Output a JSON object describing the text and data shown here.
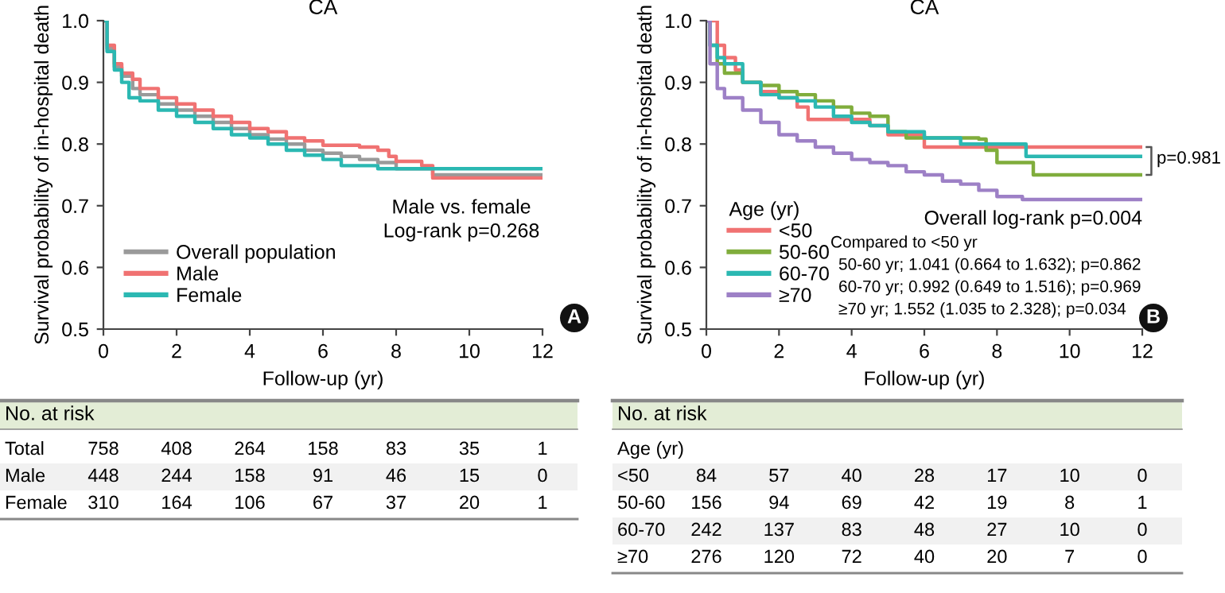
{
  "chart_data": [
    {
      "type": "step",
      "title": "CA",
      "xlabel": "Follow-up (yr)",
      "ylabel": "Survival probability of in-hospital death",
      "xlim": [
        0,
        12
      ],
      "xticks": [
        0,
        2,
        4,
        6,
        8,
        10,
        12
      ],
      "ylim": [
        0.5,
        1.0
      ],
      "yticks": [
        0.5,
        0.6,
        0.7,
        0.8,
        0.9,
        {
          "value": 1.0,
          "label": "1.0"
        }
      ],
      "legend": "bottom left",
      "grid": false,
      "annotations": [
        "Male vs. female",
        "Log-rank p=0.268",
        "A"
      ],
      "series": [
        {
          "name": "Overall population",
          "color": "#9a9a9a",
          "x": [
            0,
            0.1,
            0.3,
            0.5,
            0.8,
            1,
            1.5,
            2,
            2.5,
            3,
            3.5,
            4,
            4.5,
            5,
            5.5,
            6,
            6.5,
            7,
            7.5,
            8,
            9,
            12
          ],
          "values": [
            1.0,
            0.955,
            0.925,
            0.91,
            0.89,
            0.88,
            0.865,
            0.855,
            0.845,
            0.835,
            0.825,
            0.815,
            0.808,
            0.8,
            0.79,
            0.785,
            0.78,
            0.775,
            0.77,
            0.76,
            0.75,
            0.75
          ]
        },
        {
          "name": "Male",
          "color": "#f07272",
          "x": [
            0,
            0.1,
            0.3,
            0.5,
            0.8,
            1,
            1.5,
            2,
            2.5,
            3,
            3.5,
            4,
            4.5,
            5,
            5.5,
            6,
            7,
            7.5,
            7.8,
            8,
            8.7,
            9,
            12
          ],
          "values": [
            1.0,
            0.96,
            0.93,
            0.915,
            0.905,
            0.89,
            0.875,
            0.865,
            0.855,
            0.845,
            0.835,
            0.825,
            0.82,
            0.81,
            0.805,
            0.798,
            0.795,
            0.79,
            0.78,
            0.772,
            0.765,
            0.745,
            0.745
          ]
        },
        {
          "name": "Female",
          "color": "#2bb8b2",
          "x": [
            0,
            0.1,
            0.3,
            0.5,
            0.7,
            1,
            1.5,
            2,
            2.5,
            3,
            3.5,
            4,
            4.5,
            5,
            5.5,
            6,
            6.5,
            7,
            7.5,
            8,
            12
          ],
          "values": [
            1.0,
            0.95,
            0.92,
            0.9,
            0.875,
            0.87,
            0.855,
            0.845,
            0.835,
            0.825,
            0.815,
            0.81,
            0.8,
            0.79,
            0.782,
            0.775,
            0.765,
            0.765,
            0.76,
            0.76,
            0.76
          ]
        }
      ]
    },
    {
      "type": "step",
      "title": "CA",
      "xlabel": "Follow-up (yr)",
      "ylabel": "Survival probability of in-hospital death",
      "xlim": [
        0,
        12
      ],
      "xticks": [
        0,
        2,
        4,
        6,
        8,
        10,
        12
      ],
      "ylim": [
        0.5,
        1.0
      ],
      "yticks": [
        0.5,
        0.6,
        0.7,
        0.8,
        0.9,
        {
          "value": 1.0,
          "label": "1.0"
        }
      ],
      "legend": "bottom left",
      "legend_title": "Age (yr)",
      "grid": false,
      "annotations": [
        "p=0.981",
        "Overall log-rank p=0.004",
        "Compared to <50 yr",
        "50-60 yr; 1.041 (0.664 to 1.632); p=0.862",
        "60-70 yr; 0.992 (0.649 to 1.516); p=0.969",
        "≥70 yr; 1.552 (1.035 to 2.328); p=0.034",
        "B"
      ],
      "series": [
        {
          "name": "<50",
          "color": "#f07272",
          "x": [
            0,
            0.2,
            0.3,
            0.5,
            0.8,
            1,
            1.5,
            2,
            2.5,
            2.8,
            4,
            4.5,
            5,
            6,
            12
          ],
          "values": [
            1.0,
            1.0,
            0.96,
            0.94,
            0.92,
            0.9,
            0.885,
            0.875,
            0.86,
            0.84,
            0.84,
            0.83,
            0.815,
            0.795,
            0.795
          ]
        },
        {
          "name": "50-60",
          "color": "#80ad3c",
          "x": [
            0,
            0.1,
            0.3,
            0.5,
            1,
            1.5,
            2,
            2.5,
            3,
            3.5,
            4,
            4.5,
            5,
            5.5,
            7.5,
            7.7,
            8,
            9,
            12
          ],
          "values": [
            1.0,
            0.96,
            0.93,
            0.915,
            0.9,
            0.895,
            0.885,
            0.88,
            0.87,
            0.86,
            0.85,
            0.845,
            0.82,
            0.81,
            0.808,
            0.79,
            0.77,
            0.75,
            0.75
          ]
        },
        {
          "name": "60-70",
          "color": "#2bb8b2",
          "x": [
            0,
            0.1,
            0.3,
            0.5,
            1,
            1.5,
            2,
            2.5,
            3,
            3.5,
            4,
            4.5,
            5,
            6,
            7,
            8.8,
            12
          ],
          "values": [
            1.0,
            0.96,
            0.94,
            0.93,
            0.9,
            0.88,
            0.875,
            0.87,
            0.86,
            0.845,
            0.835,
            0.83,
            0.82,
            0.81,
            0.8,
            0.78,
            0.78
          ]
        },
        {
          "name": "≥70",
          "color": "#9d80c6",
          "x": [
            0,
            0.1,
            0.3,
            0.5,
            1,
            1.5,
            2,
            2.5,
            3,
            3.5,
            4,
            4.5,
            5,
            5.5,
            6,
            6.5,
            7,
            7.5,
            8,
            8.7,
            12
          ],
          "values": [
            1.0,
            0.93,
            0.89,
            0.875,
            0.855,
            0.835,
            0.815,
            0.805,
            0.795,
            0.785,
            0.775,
            0.77,
            0.765,
            0.755,
            0.75,
            0.74,
            0.735,
            0.725,
            0.715,
            0.71,
            0.71
          ]
        }
      ]
    },
    {
      "type": "other",
      "title": "No. at risk",
      "y_categories": [
        "Total",
        "Male",
        "Female"
      ],
      "cell_labels": [
        [
          "758",
          "408",
          "264",
          "158",
          "83",
          "35",
          "1"
        ],
        [
          "448",
          "244",
          "158",
          "91",
          "46",
          "15",
          "0"
        ],
        [
          "310",
          "164",
          "106",
          "67",
          "37",
          "20",
          "1"
        ]
      ]
    },
    {
      "type": "other",
      "title": "No. at risk",
      "y_categories": [
        "Age (yr)",
        "<50",
        "50-60",
        "60-70",
        "≥70"
      ],
      "cell_labels": [
        [
          null,
          null,
          null,
          null,
          null,
          null,
          null
        ],
        [
          "84",
          "57",
          "40",
          "28",
          "17",
          "10",
          "0"
        ],
        [
          "156",
          "94",
          "69",
          "42",
          "19",
          "8",
          "1"
        ],
        [
          "242",
          "137",
          "83",
          "48",
          "27",
          "10",
          "0"
        ],
        [
          "276",
          "120",
          "72",
          "40",
          "20",
          "7",
          "0"
        ]
      ]
    }
  ]
}
